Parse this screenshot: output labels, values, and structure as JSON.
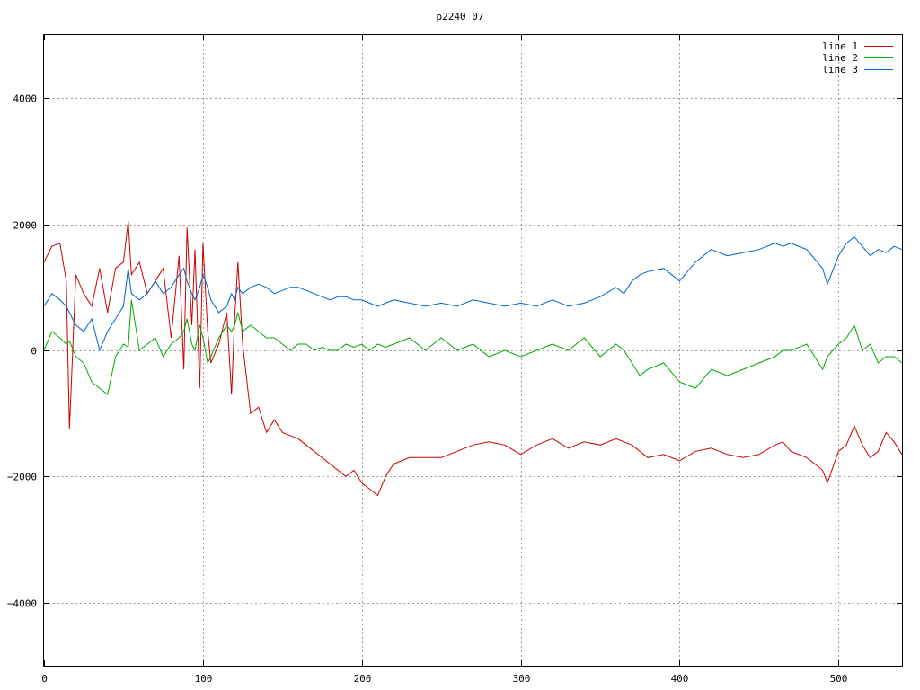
{
  "chart_data": {
    "type": "line",
    "title": "p2240_07",
    "xlabel": "",
    "ylabel": "",
    "xlim": [
      0,
      540
    ],
    "ylim": [
      -5000,
      5000
    ],
    "x_ticks": [
      0,
      100,
      200,
      300,
      400,
      500
    ],
    "y_ticks": [
      -4000,
      -2000,
      0,
      2000,
      4000
    ],
    "grid": true,
    "legend_position": "top-right",
    "x": [
      0,
      5,
      10,
      14,
      16,
      20,
      25,
      30,
      35,
      40,
      45,
      50,
      53,
      55,
      60,
      65,
      70,
      75,
      80,
      85,
      88,
      90,
      93,
      95,
      98,
      100,
      103,
      105,
      110,
      115,
      118,
      120,
      122,
      125,
      130,
      135,
      140,
      145,
      150,
      155,
      160,
      165,
      170,
      175,
      180,
      185,
      190,
      195,
      200,
      205,
      210,
      215,
      220,
      230,
      240,
      250,
      260,
      270,
      280,
      290,
      300,
      310,
      320,
      330,
      340,
      350,
      360,
      365,
      370,
      375,
      380,
      390,
      400,
      410,
      420,
      430,
      440,
      450,
      460,
      465,
      470,
      480,
      490,
      493,
      500,
      505,
      510,
      515,
      520,
      525,
      530,
      535,
      540
    ],
    "series": [
      {
        "name": "line 1",
        "color": "#cc0000",
        "values": [
          1400,
          1650,
          1700,
          1100,
          -1250,
          1200,
          900,
          700,
          1300,
          600,
          1300,
          1400,
          2050,
          1200,
          1400,
          900,
          1100,
          1300,
          200,
          1500,
          -300,
          1950,
          400,
          1600,
          -600,
          1700,
          300,
          -200,
          100,
          600,
          -700,
          500,
          1400,
          100,
          -1000,
          -900,
          -1300,
          -1100,
          -1300,
          -1350,
          -1400,
          -1500,
          -1600,
          -1700,
          -1800,
          -1900,
          -2000,
          -1900,
          -2100,
          -2200,
          -2300,
          -2000,
          -1800,
          -1700,
          -1700,
          -1700,
          -1600,
          -1500,
          -1450,
          -1500,
          -1650,
          -1500,
          -1400,
          -1550,
          -1450,
          -1500,
          -1400,
          -1450,
          -1500,
          -1600,
          -1700,
          -1650,
          -1750,
          -1600,
          -1550,
          -1650,
          -1700,
          -1650,
          -1500,
          -1450,
          -1600,
          -1700,
          -1900,
          -2100,
          -1600,
          -1500,
          -1200,
          -1500,
          -1700,
          -1600,
          -1300,
          -1450,
          -1650
        ]
      },
      {
        "name": "line 2",
        "color": "#00aa00",
        "values": [
          0,
          300,
          200,
          100,
          150,
          -100,
          -200,
          -500,
          -600,
          -700,
          -100,
          100,
          50,
          800,
          0,
          100,
          200,
          -100,
          100,
          200,
          300,
          500,
          100,
          0,
          400,
          200,
          -200,
          -100,
          200,
          400,
          300,
          400,
          600,
          300,
          400,
          300,
          200,
          200,
          100,
          0,
          100,
          100,
          0,
          50,
          0,
          0,
          100,
          50,
          100,
          0,
          100,
          50,
          100,
          200,
          0,
          200,
          0,
          100,
          -100,
          0,
          -100,
          0,
          100,
          0,
          200,
          -100,
          100,
          0,
          -200,
          -400,
          -300,
          -200,
          -500,
          -600,
          -300,
          -400,
          -300,
          -200,
          -100,
          0,
          0,
          100,
          -300,
          -100,
          100,
          200,
          400,
          0,
          100,
          -200,
          -100,
          -100,
          -200
        ]
      },
      {
        "name": "line 3",
        "color": "#0066cc",
        "values": [
          700,
          900,
          800,
          700,
          600,
          400,
          300,
          500,
          0,
          300,
          500,
          700,
          1300,
          900,
          800,
          900,
          1100,
          900,
          1000,
          1200,
          1300,
          1100,
          900,
          800,
          1000,
          1200,
          1000,
          800,
          600,
          700,
          900,
          800,
          1000,
          900,
          1000,
          1050,
          1000,
          900,
          950,
          1000,
          1000,
          950,
          900,
          850,
          800,
          850,
          850,
          800,
          800,
          750,
          700,
          750,
          800,
          750,
          700,
          750,
          700,
          800,
          750,
          700,
          750,
          700,
          800,
          700,
          750,
          850,
          1000,
          900,
          1100,
          1200,
          1250,
          1300,
          1100,
          1400,
          1600,
          1500,
          1550,
          1600,
          1700,
          1650,
          1700,
          1600,
          1300,
          1050,
          1500,
          1700,
          1800,
          1650,
          1500,
          1600,
          1550,
          1650,
          1600
        ]
      }
    ]
  }
}
